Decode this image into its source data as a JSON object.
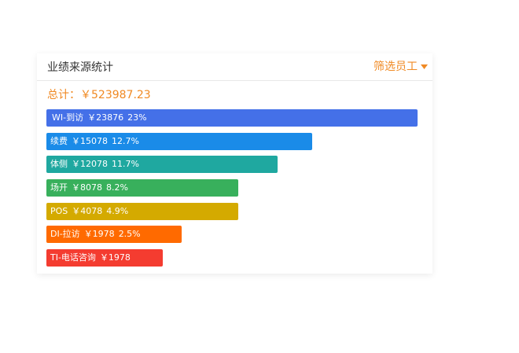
{
  "header": {
    "title": "业绩来源统计",
    "filter": "筛选员工"
  },
  "total": {
    "label": "总计：",
    "value": "￥523987.23"
  },
  "rows": [
    {
      "name": "WI-到访",
      "amount": "￥23876",
      "percent": "23%"
    },
    {
      "name": "续费",
      "amount": "￥15078",
      "percent": "12.7%"
    },
    {
      "name": "体侧",
      "amount": "￥12078",
      "percent": "11.7%"
    },
    {
      "name": "场开",
      "amount": "￥8078",
      "percent": "8.2%"
    },
    {
      "name": "POS",
      "amount": "￥4078",
      "percent": "4.9%"
    },
    {
      "name": "DI-拉访",
      "amount": "￥1978",
      "percent": "2.5%"
    },
    {
      "name": "TI-电话咨询",
      "amount": "￥1978"
    }
  ]
}
